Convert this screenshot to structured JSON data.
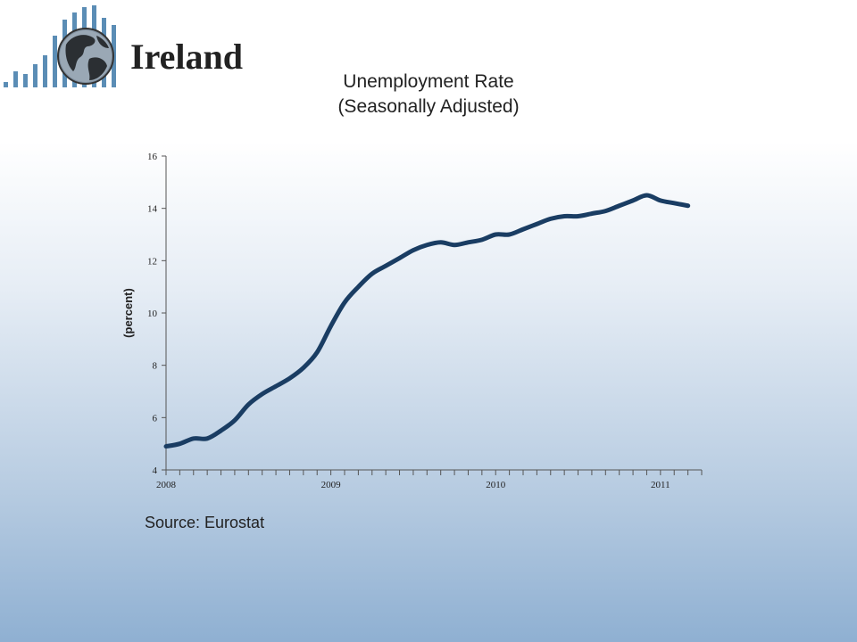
{
  "header": {
    "country": "Ireland"
  },
  "chart_title": {
    "line1": "Unemployment Rate",
    "line2": "(Seasonally Adjusted)"
  },
  "source": "Source: Eurostat",
  "colors": {
    "line": "#1a3d63",
    "axis": "#555555",
    "logo_bars": "#5b8db5"
  },
  "logo": {
    "icon": "globe-with-bar-chart-icon"
  },
  "chart_data": {
    "type": "line",
    "title": "Unemployment Rate (Seasonally Adjusted)",
    "xlabel": "",
    "ylabel": "(percent)",
    "ylim": [
      4,
      16
    ],
    "yticks": [
      4,
      6,
      8,
      10,
      12,
      14,
      16
    ],
    "xlim": [
      2008.0,
      2011.25
    ],
    "xticks": [
      2008,
      2009,
      2010,
      2011
    ],
    "xtick_labels": [
      "2008",
      "2009",
      "2010",
      "2011"
    ],
    "grid": false,
    "series": [
      {
        "x": [
          2008.0,
          2008.083,
          2008.167,
          2008.25,
          2008.333,
          2008.417,
          2008.5,
          2008.583,
          2008.667,
          2008.75,
          2008.833,
          2008.917,
          2009.0,
          2009.083,
          2009.167,
          2009.25,
          2009.333,
          2009.417,
          2009.5,
          2009.583,
          2009.667,
          2009.75,
          2009.833,
          2009.917,
          2010.0,
          2010.083,
          2010.167,
          2010.25,
          2010.333,
          2010.417,
          2010.5,
          2010.583,
          2010.667,
          2010.75,
          2010.833,
          2010.917,
          2011.0,
          2011.083,
          2011.167
        ],
        "values": [
          4.9,
          5.0,
          5.2,
          5.2,
          5.5,
          5.9,
          6.5,
          6.9,
          7.2,
          7.5,
          7.9,
          8.5,
          9.5,
          10.4,
          11.0,
          11.5,
          11.8,
          12.1,
          12.4,
          12.6,
          12.7,
          12.6,
          12.7,
          12.8,
          13.0,
          13.0,
          13.2,
          13.4,
          13.6,
          13.7,
          13.7,
          13.8,
          13.9,
          14.1,
          14.3,
          14.5,
          14.3,
          14.2,
          14.1
        ]
      }
    ]
  }
}
